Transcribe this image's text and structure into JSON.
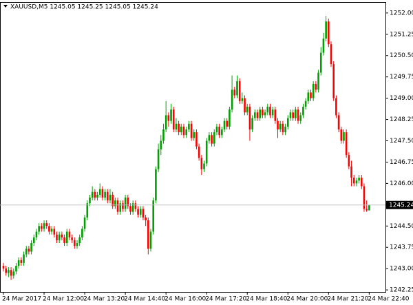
{
  "chart_data": {
    "type": "candlestick",
    "title": "XAUUSD,M5  1245.05 1245.25 1245.05 1245.24",
    "up_color": "#00a000",
    "down_color": "#ff0000",
    "last_price": 1245.24,
    "ylim": [
      1242.18,
      1252.36
    ],
    "yticks": [
      {
        "value": 1252.0,
        "label": "1252.00"
      },
      {
        "value": 1251.25,
        "label": "1251.25"
      },
      {
        "value": 1250.5,
        "label": "1250.50"
      },
      {
        "value": 1249.75,
        "label": "1249.75"
      },
      {
        "value": 1249.0,
        "label": "1249.00"
      },
      {
        "value": 1248.25,
        "label": "1248.25"
      },
      {
        "value": 1247.5,
        "label": "1247.50"
      },
      {
        "value": 1246.75,
        "label": "1246.75"
      },
      {
        "value": 1246.0,
        "label": "1246.00"
      },
      {
        "value": 1244.5,
        "label": "1244.50"
      },
      {
        "value": 1243.75,
        "label": "1243.75"
      },
      {
        "value": 1243.0,
        "label": "1243.00"
      },
      {
        "value": 1242.25,
        "label": "1242.25"
      }
    ],
    "categories": [
      "24 Mar 2017",
      null,
      null,
      null,
      null,
      null,
      null,
      null,
      null,
      null,
      null,
      null,
      null,
      null,
      null,
      null,
      "24 Mar 12:00",
      null,
      null,
      null,
      null,
      null,
      null,
      null,
      null,
      null,
      null,
      null,
      null,
      null,
      null,
      null,
      "24 Mar 13:20",
      null,
      null,
      null,
      null,
      null,
      null,
      null,
      null,
      null,
      null,
      null,
      null,
      null,
      null,
      null,
      "24 Mar 14:40",
      null,
      null,
      null,
      null,
      null,
      null,
      null,
      null,
      null,
      null,
      null,
      null,
      null,
      null,
      null,
      "24 Mar 16:00",
      null,
      null,
      null,
      null,
      null,
      null,
      null,
      null,
      null,
      null,
      null,
      null,
      null,
      null,
      null,
      "24 Mar 17:20",
      null,
      null,
      null,
      null,
      null,
      null,
      null,
      null,
      null,
      null,
      null,
      null,
      null,
      null,
      null,
      "24 Mar 18:40",
      null,
      null,
      null,
      null,
      null,
      null,
      null,
      null,
      null,
      null,
      null,
      null,
      null,
      null,
      null,
      "24 Mar 20:00",
      null,
      null,
      null,
      null,
      null,
      null,
      null,
      null,
      null,
      null,
      null,
      null,
      null,
      null,
      null,
      "24 Mar 21:20",
      null,
      null,
      null,
      null,
      null,
      null,
      null,
      null,
      null,
      null,
      null,
      null,
      null,
      null,
      null,
      "24 Mar 22:40"
    ],
    "ohlc": [
      [
        1243.1,
        1243.2,
        1242.9,
        1243.0
      ],
      [
        1243.0,
        1243.1,
        1242.75,
        1242.85
      ],
      [
        1242.85,
        1243.05,
        1242.7,
        1242.95
      ],
      [
        1242.95,
        1243.05,
        1242.6,
        1242.75
      ],
      [
        1242.75,
        1243.0,
        1242.65,
        1242.9
      ],
      [
        1242.9,
        1243.2,
        1242.8,
        1243.1
      ],
      [
        1243.1,
        1243.4,
        1243.0,
        1243.3
      ],
      [
        1243.3,
        1243.4,
        1243.1,
        1243.2
      ],
      [
        1243.2,
        1243.6,
        1243.1,
        1243.5
      ],
      [
        1243.5,
        1243.8,
        1243.4,
        1243.7
      ],
      [
        1243.7,
        1243.8,
        1243.5,
        1243.6
      ],
      [
        1243.6,
        1244.0,
        1243.5,
        1243.9
      ],
      [
        1243.9,
        1244.2,
        1243.8,
        1244.1
      ],
      [
        1244.1,
        1244.4,
        1244.0,
        1244.3
      ],
      [
        1244.3,
        1244.6,
        1244.2,
        1244.5
      ],
      [
        1244.5,
        1244.6,
        1244.3,
        1244.4
      ],
      [
        1244.4,
        1244.7,
        1244.3,
        1244.6
      ],
      [
        1244.6,
        1244.7,
        1244.4,
        1244.5
      ],
      [
        1244.5,
        1244.6,
        1244.2,
        1244.3
      ],
      [
        1244.3,
        1244.5,
        1244.2,
        1244.4
      ],
      [
        1244.4,
        1244.5,
        1244.1,
        1244.2
      ],
      [
        1244.2,
        1244.3,
        1243.9,
        1244.0
      ],
      [
        1244.0,
        1244.3,
        1243.9,
        1244.2
      ],
      [
        1244.2,
        1244.3,
        1244.0,
        1244.1
      ],
      [
        1244.1,
        1244.2,
        1243.8,
        1243.9
      ],
      [
        1243.9,
        1244.4,
        1243.8,
        1244.3
      ],
      [
        1244.3,
        1244.4,
        1244.0,
        1244.1
      ],
      [
        1244.1,
        1244.2,
        1243.9,
        1244.0
      ],
      [
        1244.0,
        1244.1,
        1243.7,
        1243.8
      ],
      [
        1243.8,
        1244.0,
        1243.7,
        1243.9
      ],
      [
        1243.9,
        1244.2,
        1243.8,
        1244.1
      ],
      [
        1244.1,
        1244.5,
        1244.0,
        1244.4
      ],
      [
        1244.4,
        1244.9,
        1244.3,
        1244.8
      ],
      [
        1244.8,
        1245.4,
        1244.7,
        1245.3
      ],
      [
        1245.3,
        1245.6,
        1245.2,
        1245.5
      ],
      [
        1245.5,
        1245.9,
        1245.4,
        1245.7
      ],
      [
        1245.7,
        1245.8,
        1245.4,
        1245.5
      ],
      [
        1245.5,
        1245.7,
        1245.4,
        1245.6
      ],
      [
        1245.6,
        1246.0,
        1245.5,
        1245.8
      ],
      [
        1245.8,
        1245.9,
        1245.4,
        1245.5
      ],
      [
        1245.5,
        1245.8,
        1245.4,
        1245.7
      ],
      [
        1245.7,
        1245.8,
        1245.3,
        1245.4
      ],
      [
        1245.4,
        1245.8,
        1245.3,
        1245.6
      ],
      [
        1245.6,
        1245.7,
        1245.1,
        1245.2
      ],
      [
        1245.2,
        1245.5,
        1245.1,
        1245.4
      ],
      [
        1245.4,
        1245.5,
        1244.9,
        1245.0
      ],
      [
        1245.0,
        1245.4,
        1244.9,
        1245.3
      ],
      [
        1245.3,
        1245.4,
        1245.0,
        1245.1
      ],
      [
        1245.1,
        1245.6,
        1245.0,
        1245.5
      ],
      [
        1245.5,
        1245.6,
        1245.1,
        1245.2
      ],
      [
        1245.2,
        1245.3,
        1244.9,
        1245.0
      ],
      [
        1245.0,
        1245.4,
        1244.9,
        1245.3
      ],
      [
        1245.3,
        1245.4,
        1245.0,
        1245.1
      ],
      [
        1245.1,
        1245.2,
        1244.8,
        1244.9
      ],
      [
        1244.9,
        1245.2,
        1244.8,
        1245.1
      ],
      [
        1245.1,
        1245.2,
        1244.7,
        1244.8
      ],
      [
        1244.8,
        1244.9,
        1244.5,
        1244.7
      ],
      [
        1244.7,
        1244.8,
        1243.5,
        1243.7
      ],
      [
        1243.7,
        1244.4,
        1243.6,
        1244.3
      ],
      [
        1244.3,
        1245.5,
        1244.2,
        1245.4
      ],
      [
        1245.4,
        1246.6,
        1245.3,
        1246.5
      ],
      [
        1246.5,
        1247.4,
        1246.4,
        1247.2
      ],
      [
        1247.2,
        1247.7,
        1247.0,
        1247.5
      ],
      [
        1247.5,
        1248.1,
        1247.4,
        1247.9
      ],
      [
        1247.9,
        1248.9,
        1247.8,
        1248.4
      ],
      [
        1248.4,
        1248.5,
        1248.0,
        1248.2
      ],
      [
        1248.2,
        1248.8,
        1248.1,
        1248.6
      ],
      [
        1248.6,
        1248.7,
        1247.8,
        1247.9
      ],
      [
        1247.9,
        1248.3,
        1247.8,
        1248.1
      ],
      [
        1248.1,
        1248.2,
        1247.7,
        1247.8
      ],
      [
        1247.8,
        1248.1,
        1247.7,
        1248.0
      ],
      [
        1248.0,
        1248.1,
        1247.6,
        1247.7
      ],
      [
        1247.7,
        1248.0,
        1247.6,
        1247.9
      ],
      [
        1247.9,
        1248.2,
        1247.8,
        1248.1
      ],
      [
        1248.1,
        1248.2,
        1247.5,
        1247.6
      ],
      [
        1247.6,
        1247.9,
        1247.5,
        1247.8
      ],
      [
        1247.8,
        1247.9,
        1247.2,
        1247.3
      ],
      [
        1247.3,
        1247.4,
        1246.8,
        1246.9
      ],
      [
        1246.9,
        1247.0,
        1246.3,
        1246.5
      ],
      [
        1246.5,
        1246.8,
        1246.4,
        1246.7
      ],
      [
        1246.7,
        1247.6,
        1246.6,
        1247.5
      ],
      [
        1247.5,
        1247.8,
        1247.4,
        1247.7
      ],
      [
        1247.7,
        1247.8,
        1247.3,
        1247.4
      ],
      [
        1247.4,
        1247.9,
        1247.3,
        1247.8
      ],
      [
        1247.8,
        1248.1,
        1247.7,
        1248.0
      ],
      [
        1248.0,
        1248.1,
        1247.6,
        1247.7
      ],
      [
        1247.7,
        1248.0,
        1247.6,
        1247.9
      ],
      [
        1247.9,
        1248.3,
        1247.8,
        1248.2
      ],
      [
        1248.2,
        1248.3,
        1247.9,
        1248.0
      ],
      [
        1248.0,
        1248.7,
        1247.9,
        1248.6
      ],
      [
        1248.6,
        1249.8,
        1248.5,
        1249.3
      ],
      [
        1249.3,
        1249.4,
        1249.0,
        1249.1
      ],
      [
        1249.1,
        1249.8,
        1249.0,
        1249.6
      ],
      [
        1249.6,
        1249.7,
        1248.8,
        1248.9
      ],
      [
        1248.9,
        1249.2,
        1248.8,
        1249.0
      ],
      [
        1249.0,
        1249.1,
        1248.4,
        1248.5
      ],
      [
        1248.5,
        1248.8,
        1248.4,
        1248.7
      ],
      [
        1248.7,
        1248.8,
        1247.5,
        1247.9
      ],
      [
        1247.9,
        1248.4,
        1247.8,
        1248.3
      ],
      [
        1248.3,
        1248.6,
        1248.2,
        1248.5
      ],
      [
        1248.5,
        1248.6,
        1248.2,
        1248.3
      ],
      [
        1248.3,
        1248.7,
        1248.2,
        1248.6
      ],
      [
        1248.6,
        1248.7,
        1248.3,
        1248.4
      ],
      [
        1248.4,
        1248.6,
        1248.3,
        1248.5
      ],
      [
        1248.5,
        1248.8,
        1248.4,
        1248.7
      ],
      [
        1248.7,
        1248.8,
        1248.3,
        1248.4
      ],
      [
        1248.4,
        1248.7,
        1248.3,
        1248.6
      ],
      [
        1248.6,
        1248.7,
        1248.1,
        1248.2
      ],
      [
        1248.2,
        1248.3,
        1247.6,
        1247.9
      ],
      [
        1247.9,
        1248.2,
        1247.8,
        1248.1
      ],
      [
        1248.1,
        1248.2,
        1247.7,
        1247.8
      ],
      [
        1247.8,
        1248.1,
        1247.7,
        1248.0
      ],
      [
        1248.0,
        1248.4,
        1247.9,
        1248.3
      ],
      [
        1248.3,
        1248.6,
        1248.2,
        1248.5
      ],
      [
        1248.5,
        1248.6,
        1248.2,
        1248.3
      ],
      [
        1248.3,
        1248.7,
        1248.2,
        1248.6
      ],
      [
        1248.6,
        1248.7,
        1248.1,
        1248.2
      ],
      [
        1248.2,
        1248.5,
        1248.1,
        1248.4
      ],
      [
        1248.4,
        1248.8,
        1248.3,
        1248.7
      ],
      [
        1248.7,
        1249.0,
        1248.6,
        1248.9
      ],
      [
        1248.9,
        1249.3,
        1248.8,
        1249.2
      ],
      [
        1249.2,
        1249.3,
        1248.9,
        1249.0
      ],
      [
        1249.0,
        1249.6,
        1248.9,
        1249.5
      ],
      [
        1249.5,
        1249.6,
        1249.2,
        1249.3
      ],
      [
        1249.3,
        1250.0,
        1249.2,
        1249.9
      ],
      [
        1249.9,
        1250.8,
        1249.8,
        1250.6
      ],
      [
        1250.6,
        1251.3,
        1250.5,
        1251.1
      ],
      [
        1251.1,
        1251.9,
        1251.0,
        1251.7
      ],
      [
        1251.7,
        1251.8,
        1250.8,
        1250.9
      ],
      [
        1250.9,
        1251.0,
        1250.1,
        1250.2
      ],
      [
        1250.2,
        1250.3,
        1248.9,
        1249.0
      ],
      [
        1249.0,
        1249.1,
        1248.3,
        1248.4
      ],
      [
        1248.4,
        1248.5,
        1247.8,
        1247.9
      ],
      [
        1247.9,
        1248.0,
        1247.4,
        1247.5
      ],
      [
        1247.5,
        1247.9,
        1247.4,
        1247.8
      ],
      [
        1247.8,
        1247.9,
        1246.9,
        1247.0
      ],
      [
        1247.0,
        1247.1,
        1246.5,
        1246.6
      ],
      [
        1246.6,
        1246.8,
        1245.9,
        1246.2
      ],
      [
        1246.2,
        1246.3,
        1245.9,
        1246.0
      ],
      [
        1246.0,
        1246.2,
        1245.9,
        1246.1
      ],
      [
        1246.1,
        1246.3,
        1246.0,
        1246.2
      ],
      [
        1246.2,
        1246.3,
        1245.8,
        1245.9
      ],
      [
        1245.9,
        1246.0,
        1245.0,
        1245.1
      ],
      [
        1245.1,
        1245.4,
        1245.0,
        1245.05
      ],
      [
        1245.05,
        1245.25,
        1245.05,
        1245.24
      ]
    ]
  }
}
